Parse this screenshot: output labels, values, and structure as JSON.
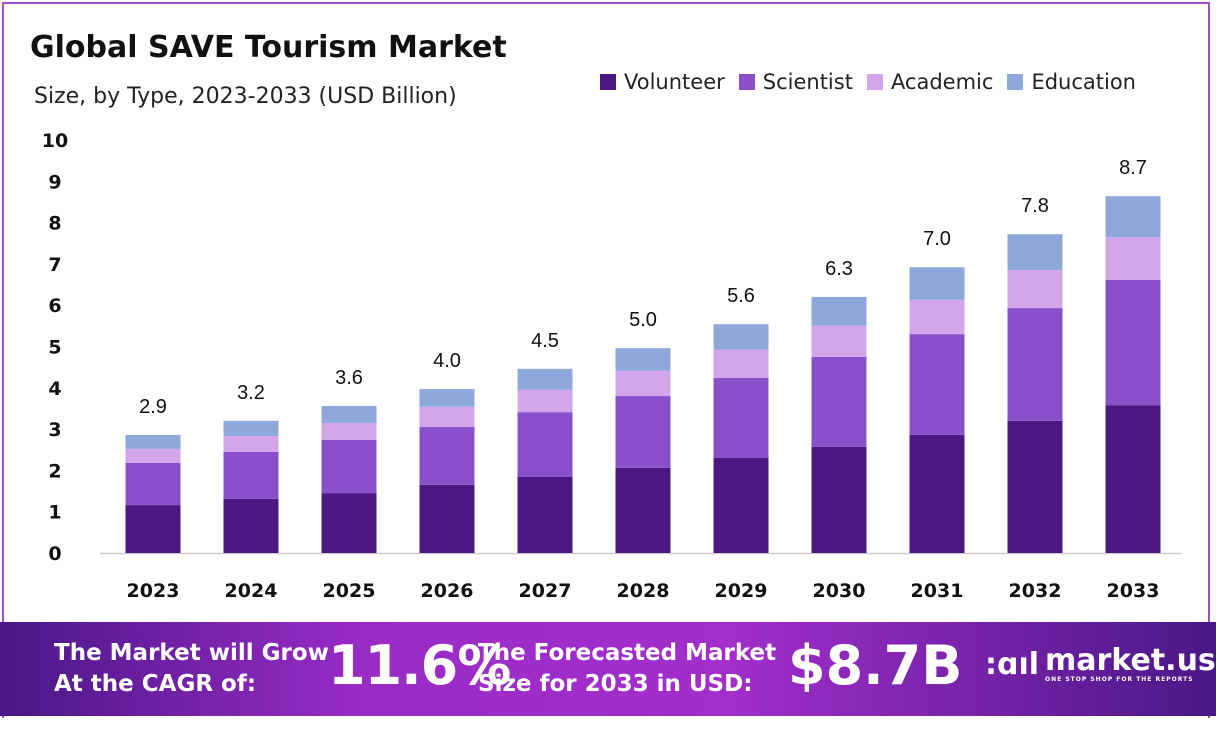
{
  "chart_data": {
    "type": "bar",
    "stacked": true,
    "title": "Global SAVE Tourism Market",
    "subtitle": "Size, by Type, 2023-2033 (USD Billion)",
    "categories": [
      "2023",
      "2024",
      "2025",
      "2026",
      "2027",
      "2028",
      "2029",
      "2030",
      "2031",
      "2032",
      "2033"
    ],
    "series": [
      {
        "name": "Volunteer",
        "color": "#4e1680",
        "values": [
          1.16,
          1.31,
          1.45,
          1.65,
          1.84,
          2.06,
          2.3,
          2.57,
          2.86,
          3.2,
          3.58
        ]
      },
      {
        "name": "Scientist",
        "color": "#8b4fcc",
        "values": [
          1.02,
          1.14,
          1.29,
          1.4,
          1.57,
          1.74,
          1.94,
          2.18,
          2.44,
          2.73,
          3.03
        ]
      },
      {
        "name": "Academic",
        "color": "#d3a6eb",
        "values": [
          0.34,
          0.38,
          0.41,
          0.49,
          0.54,
          0.61,
          0.68,
          0.75,
          0.83,
          0.92,
          1.04
        ]
      },
      {
        "name": "Education",
        "color": "#8fa8dc",
        "values": [
          0.34,
          0.37,
          0.41,
          0.43,
          0.51,
          0.55,
          0.62,
          0.7,
          0.79,
          0.87,
          0.99
        ]
      }
    ],
    "totals_labels": [
      "2.9",
      "3.2",
      "3.6",
      "4.0",
      "4.5",
      "5.0",
      "5.6",
      "6.3",
      "7.0",
      "7.8",
      "8.7"
    ],
    "yticks": [
      "0",
      "1",
      "2",
      "3",
      "4",
      "5",
      "6",
      "7",
      "8",
      "9",
      "10"
    ],
    "ylim": [
      0,
      10
    ],
    "grid": false,
    "legend_position": "top-right"
  },
  "footer": {
    "cagr_text_line1": "The Market will Grow",
    "cagr_text_line2": "At the CAGR of:",
    "cagr_value": "11.6%",
    "forecast_text_line1": "The Forecasted Market",
    "forecast_text_line2": "Size for 2033 in USD:",
    "forecast_value": "$8.7B",
    "logo_name": "market.us",
    "logo_tagline": "ONE STOP SHOP FOR THE REPORTS"
  }
}
